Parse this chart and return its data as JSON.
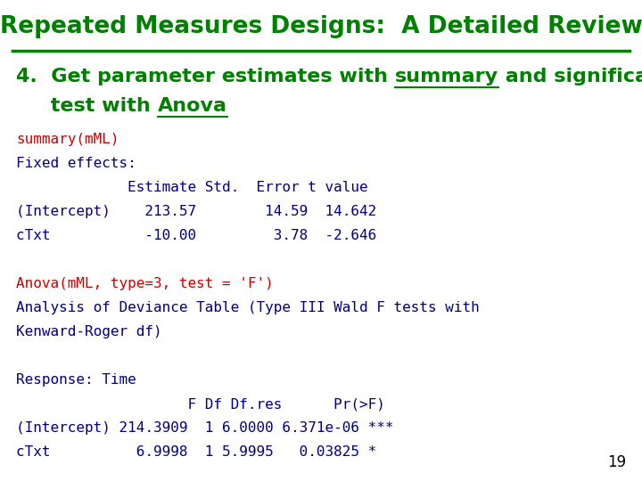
{
  "title": "Repeated Measures Designs:  A Detailed Review",
  "title_color": "#008000",
  "title_fontsize": 19,
  "background_color": "#ffffff",
  "header_line_color": "#008000",
  "subtitle_color": "#008000",
  "subtitle_fontsize": 16,
  "code_red_color": "#cc0000",
  "code_blue_color": "#000080",
  "code_fontsize": 11.5,
  "page_number": "19",
  "lines": [
    {
      "text": "summary(mML)",
      "color": "#cc0000"
    },
    {
      "text": "Fixed effects:",
      "color": "#000080"
    },
    {
      "text": "             Estimate Std.  Error t value",
      "color": "#000080"
    },
    {
      "text": "(Intercept)    213.57        14.59  14.642",
      "color": "#000080"
    },
    {
      "text": "cTxt           -10.00         3.78  -2.646",
      "color": "#000080"
    },
    {
      "text": "",
      "color": "#000080"
    },
    {
      "text": "Anova(mML, type=3, test = 'F')",
      "color": "#cc0000"
    },
    {
      "text": "Analysis of Deviance Table (Type III Wald F tests with",
      "color": "#000080"
    },
    {
      "text": "Kenward-Roger df)",
      "color": "#000080"
    },
    {
      "text": "",
      "color": "#000080"
    },
    {
      "text": "Response: Time",
      "color": "#000080"
    },
    {
      "text": "                    F Df Df.res      Pr(>F)",
      "color": "#000080"
    },
    {
      "text": "(Intercept) 214.3909  1 6.0000 6.371e-06 ***",
      "color": "#000080"
    },
    {
      "text": "cTxt          6.9998  1 5.9995   0.03825 *",
      "color": "#000080"
    }
  ]
}
